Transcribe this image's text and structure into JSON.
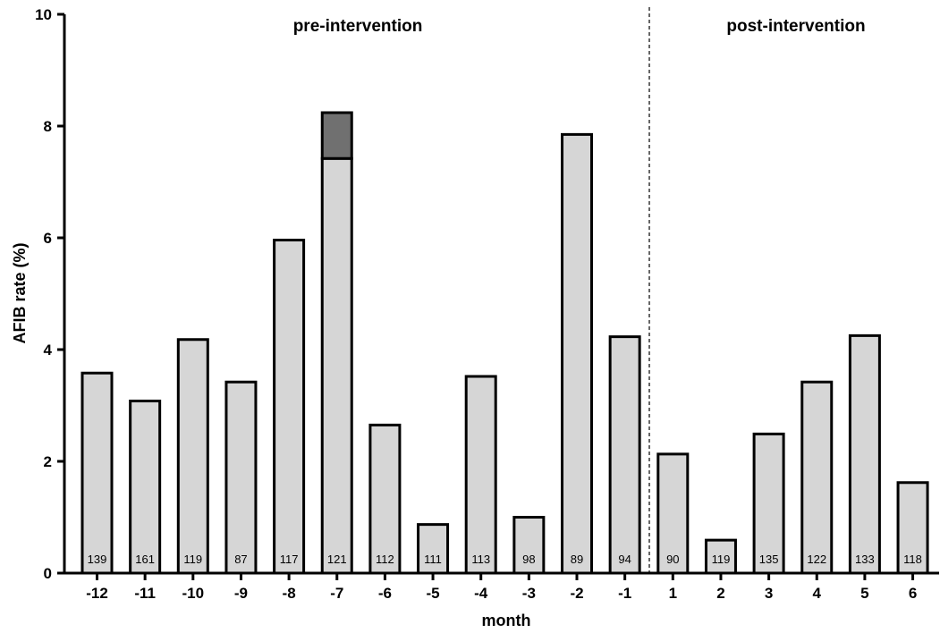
{
  "chart_data": {
    "type": "bar",
    "xlabel": "month",
    "ylabel": "AFIB rate (%)",
    "ylim": [
      0,
      10
    ],
    "yticks": [
      "0",
      "2",
      "4",
      "6",
      "8",
      "10"
    ],
    "grid": false,
    "categories": [
      "-12",
      "-11",
      "-10",
      "-9",
      "-8",
      "-7",
      "-6",
      "-5",
      "-4",
      "-3",
      "-2",
      "-1",
      "1",
      "2",
      "3",
      "4",
      "5",
      "6"
    ],
    "values": [
      3.58,
      3.08,
      4.18,
      3.42,
      5.96,
      8.24,
      2.65,
      0.87,
      3.52,
      1.0,
      7.85,
      4.23,
      2.13,
      0.59,
      2.49,
      3.42,
      4.25,
      1.62
    ],
    "stacked_segment": {
      "category": "-7",
      "lower_value": 7.42,
      "upper_value": 8.24,
      "color": "#707070"
    },
    "n_labels": [
      "139",
      "161",
      "119",
      "87",
      "117",
      "121",
      "112",
      "111",
      "113",
      "98",
      "89",
      "94",
      "90",
      "119",
      "135",
      "122",
      "133",
      "118"
    ],
    "regions": [
      {
        "label": "pre-intervention"
      },
      {
        "label": "post-intervention"
      }
    ],
    "divider": "between -1 and 1",
    "colors": {
      "bar_fill": "#d6d6d6",
      "bar_stroke": "#000000",
      "highlight": "#707070"
    }
  }
}
